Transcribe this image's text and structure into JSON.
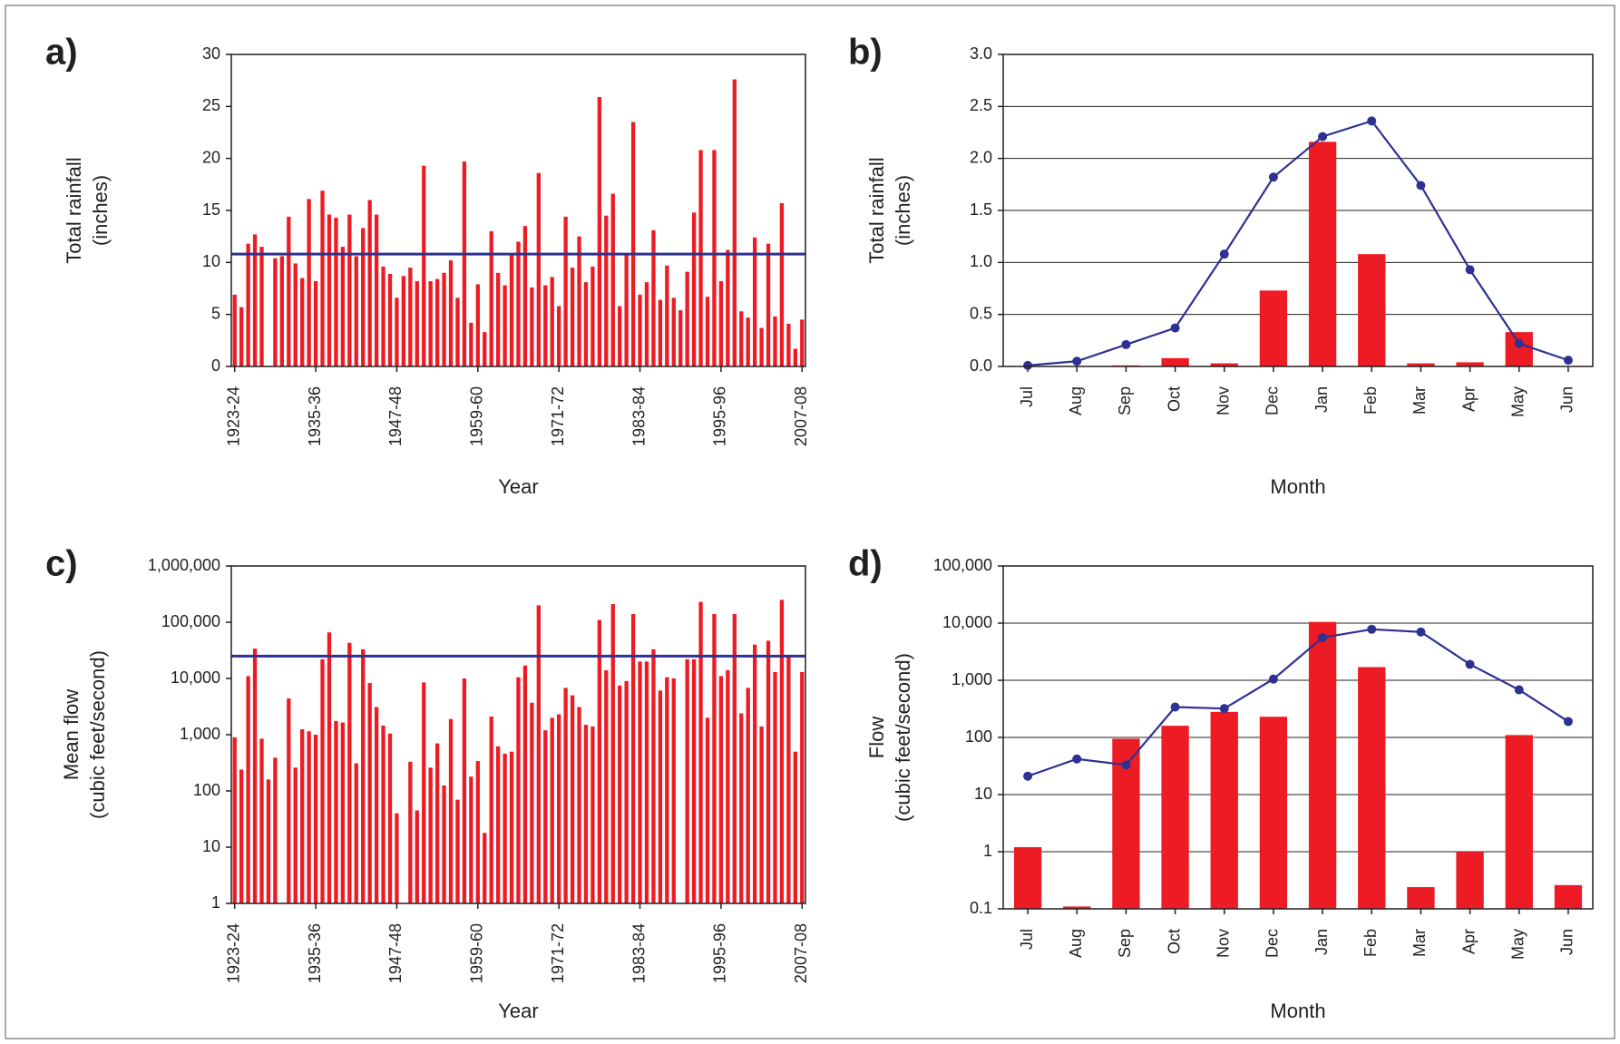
{
  "colors": {
    "bar": "#ed1c24",
    "line": "#2e3192",
    "frame": "#231f20",
    "grid": "#231f20"
  },
  "chart_data": [
    {
      "panel": "a)",
      "type": "bar",
      "ylabel": [
        "Total rainfall",
        "(inches)"
      ],
      "xlabel": "Year",
      "ylim": [
        0,
        30
      ],
      "yticks": [
        "0",
        "5",
        "10",
        "15",
        "20",
        "25",
        "30"
      ],
      "ytick_values": [
        0,
        5,
        10,
        15,
        20,
        25,
        30
      ],
      "grid": false,
      "x_tick_labels": [
        "1923-24",
        "1935-36",
        "1947-48",
        "1959-60",
        "1971-72",
        "1983-84",
        "1995-96",
        "2007-08"
      ],
      "x_tick_index": [
        0,
        12,
        24,
        36,
        48,
        60,
        72,
        84
      ],
      "values": [
        6.9,
        5.7,
        11.8,
        12.7,
        11.5,
        0,
        10.4,
        10.6,
        14.4,
        9.9,
        8.5,
        16.1,
        8.2,
        16.9,
        14.6,
        14.3,
        11.5,
        14.6,
        10.6,
        13.3,
        16.0,
        14.6,
        9.6,
        8.9,
        6.6,
        8.7,
        9.5,
        8.2,
        19.3,
        8.2,
        8.4,
        9.0,
        10.2,
        6.6,
        19.7,
        4.2,
        7.9,
        3.3,
        13.0,
        9.0,
        7.8,
        10.7,
        12.0,
        13.5,
        7.6,
        18.6,
        7.8,
        8.6,
        5.8,
        14.4,
        9.5,
        12.5,
        8.1,
        9.6,
        25.9,
        14.5,
        16.6,
        5.8,
        10.8,
        23.5,
        6.9,
        8.1,
        13.1,
        6.4,
        9.7,
        6.6,
        5.4,
        9.1,
        14.8,
        20.8,
        6.7,
        20.8,
        8.2,
        11.2,
        27.6,
        5.3,
        4.7,
        12.4,
        3.7,
        11.8,
        4.8,
        15.7,
        4.1,
        1.7,
        4.5
      ],
      "mean": 10.8
    },
    {
      "panel": "b)",
      "type": "bar",
      "ylabel": [
        "Total rainfall",
        "(inches)"
      ],
      "xlabel": "Month",
      "ylim": [
        0,
        3
      ],
      "yticks": [
        "0.0",
        "0.5",
        "1.0",
        "1.5",
        "2.0",
        "2.5",
        "3.0"
      ],
      "ytick_values": [
        0,
        0.5,
        1,
        1.5,
        2,
        2.5,
        3
      ],
      "grid": true,
      "categories": [
        "Jul",
        "Aug",
        "Sep",
        "Oct",
        "Nov",
        "Dec",
        "Jan",
        "Feb",
        "Mar",
        "Apr",
        "May",
        "Jun"
      ],
      "values": [
        0.0,
        0.0,
        0.01,
        0.08,
        0.03,
        0.73,
        2.16,
        1.08,
        0.03,
        0.04,
        0.33,
        0.0
      ],
      "line": [
        0.01,
        0.05,
        0.21,
        0.37,
        1.08,
        1.82,
        2.21,
        2.36,
        1.74,
        0.93,
        0.22,
        0.06
      ]
    },
    {
      "panel": "c)",
      "type": "bar",
      "ylabel": [
        "Mean flow",
        "(cubic feet/second)"
      ],
      "xlabel": "Year",
      "log": true,
      "ylim": [
        1,
        1000000
      ],
      "yticks": [
        "1",
        "10",
        "100",
        "1,000",
        "10,000",
        "100,000",
        "1,000,000"
      ],
      "ytick_values": [
        1,
        10,
        100,
        1000,
        10000,
        100000,
        1000000
      ],
      "grid": false,
      "x_tick_labels": [
        "1923-24",
        "1935-36",
        "1947-48",
        "1959-60",
        "1971-72",
        "1983-84",
        "1995-96",
        "2007-08"
      ],
      "x_tick_index": [
        0,
        12,
        24,
        36,
        48,
        60,
        72,
        84
      ],
      "values": [
        900,
        240,
        11000,
        34000,
        850,
        160,
        390,
        1,
        4400,
        260,
        1250,
        1150,
        1000,
        22000,
        66000,
        1750,
        1650,
        43000,
        310,
        33000,
        8300,
        3100,
        1450,
        1050,
        40,
        1,
        330,
        45,
        8500,
        260,
        700,
        125,
        1900,
        70,
        10000,
        180,
        340,
        18,
        2100,
        620,
        460,
        500,
        10500,
        17000,
        3700,
        200000,
        1200,
        2000,
        2300,
        6800,
        5000,
        3100,
        1500,
        1400,
        110000,
        14000,
        210000,
        7500,
        9000,
        140000,
        20000,
        20000,
        33000,
        6100,
        10500,
        10000,
        1,
        22000,
        22000,
        230000,
        2000,
        140000,
        11000,
        14000,
        140000,
        2400,
        6800,
        40000,
        1400,
        47000,
        13000,
        250000,
        25000,
        500,
        13000
      ],
      "mean": 25000
    },
    {
      "panel": "d)",
      "type": "bar",
      "ylabel": [
        "Flow",
        "(cubic feet/second)"
      ],
      "xlabel": "Month",
      "log": true,
      "ylim": [
        0.1,
        100000
      ],
      "yticks": [
        "0.1",
        "1",
        "10",
        "100",
        "1,000",
        "10,000",
        "100,000"
      ],
      "ytick_values": [
        0.1,
        1,
        10,
        100,
        1000,
        10000,
        100000
      ],
      "grid": true,
      "categories": [
        "Jul",
        "Aug",
        "Sep",
        "Oct",
        "Nov",
        "Dec",
        "Jan",
        "Feb",
        "Mar",
        "Apr",
        "May",
        "Jun"
      ],
      "values": [
        1.2,
        0.11,
        95,
        160,
        280,
        230,
        10500,
        1700,
        0.24,
        1.0,
        110,
        0.26
      ],
      "line": [
        21,
        42,
        33,
        340,
        320,
        1050,
        5600,
        7800,
        7000,
        1900,
        680,
        190
      ]
    }
  ]
}
